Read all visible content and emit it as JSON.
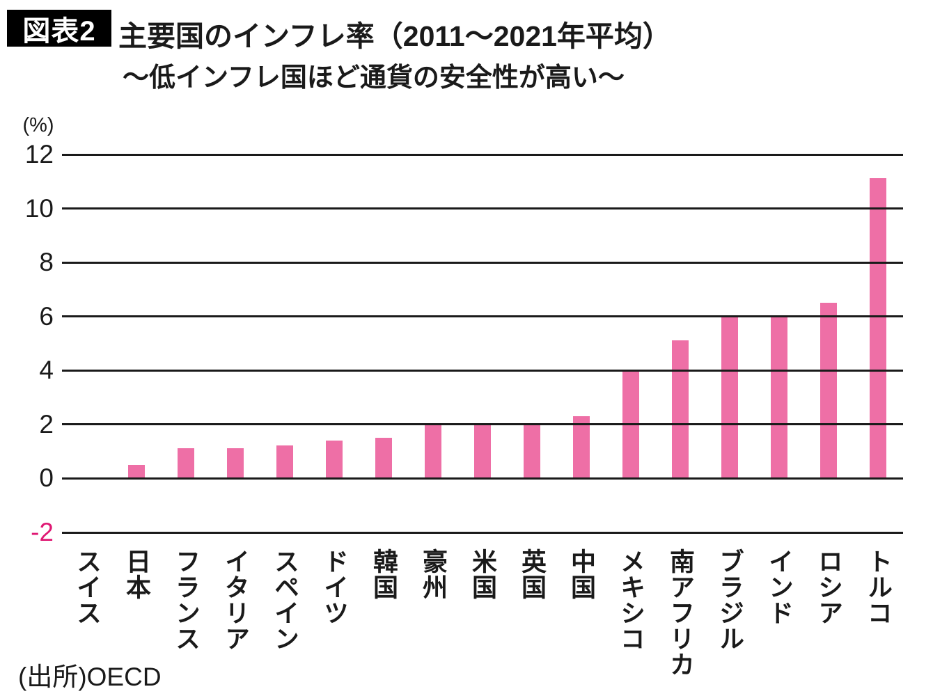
{
  "header": {
    "badge": "図表2",
    "title": "主要国のインフレ率（2011〜2021年平均）",
    "subtitle": "〜低インフレ国ほど通貨の安全性が高い〜"
  },
  "chart_data": {
    "type": "bar",
    "title": "主要国のインフレ率（2011〜2021年平均）",
    "subtitle": "〜低インフレ国ほど通貨の安全性が高い〜",
    "unit_label": "(%)",
    "categories": [
      "スイス",
      "日本",
      "フランス",
      "イタリア",
      "スペイン",
      "ドイツ",
      "韓国",
      "豪州",
      "米国",
      "英国",
      "中国",
      "メキシコ",
      "南アフリカ",
      "ブラジル",
      "インド",
      "ロシア",
      "トルコ"
    ],
    "values": [
      0,
      0.5,
      1.1,
      1.1,
      1.2,
      1.4,
      1.5,
      2.0,
      2.0,
      2.0,
      2.3,
      4.0,
      5.1,
      6.0,
      6.0,
      6.5,
      11.1
    ],
    "yticks": [
      12,
      10,
      8,
      6,
      4,
      2,
      0,
      -2
    ],
    "ylim": [
      -2,
      12
    ],
    "grid": true,
    "legend": "none",
    "colors": {
      "bar": "#ee6fa6",
      "negative_tick": "#df1873",
      "line": "#1a1a1a",
      "text": "#1a1a1a"
    },
    "source": "(出所)OECD"
  },
  "footer": {
    "source": "(出所)OECD"
  }
}
